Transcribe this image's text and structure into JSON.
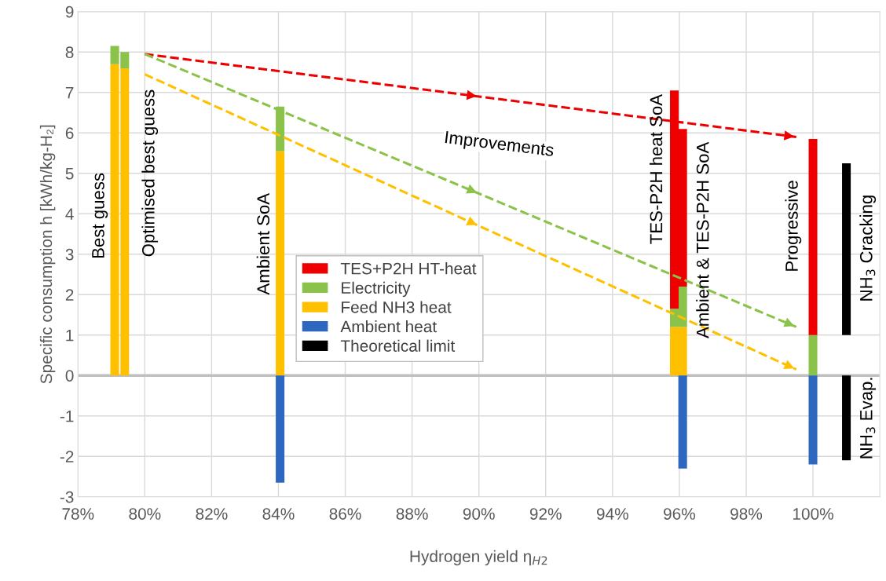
{
  "chart_data": [
    {
      "type": "bar",
      "stacked": true,
      "xlabel": "Hydrogen yield η$_{H2}$",
      "ylabel": "Specific consumption h [kWh/kg-H₂]",
      "x": [
        79.1,
        79.4,
        84.05,
        95.85,
        96.1,
        100
      ],
      "series": [
        {
          "name": "Feed NH3 heat",
          "color": "#ffc000",
          "values": [
            7.7,
            7.6,
            5.55,
            1.2,
            1.2,
            null
          ]
        },
        {
          "name": "Electricity",
          "color": "#8bc24a",
          "values": [
            0.45,
            0.4,
            1.1,
            0.45,
            1.0,
            1.0
          ]
        },
        {
          "name": "TES+P2H HT-heat",
          "color": "#ee0000",
          "values": [
            null,
            null,
            null,
            5.4,
            3.9,
            4.85
          ]
        },
        {
          "name": "Ambient heat",
          "color": "#2e67c0",
          "values": [
            null,
            null,
            -2.65,
            null,
            -2.3,
            -2.2
          ]
        },
        {
          "type": "line",
          "color": "#ee0000",
          "line_style": "dashed",
          "x": [
            80,
            90,
            99.5
          ],
          "values": [
            7.95,
            6.9,
            5.9
          ]
        },
        {
          "type": "line",
          "color": "#8bc24a",
          "line_style": "dashed",
          "x": [
            80,
            90,
            99.5
          ],
          "values": [
            7.95,
            4.5,
            1.2
          ]
        },
        {
          "type": "line",
          "color": "#ffc000",
          "line_style": "dashed",
          "x": [
            80,
            90,
            99.5
          ],
          "values": [
            7.45,
            3.7,
            0.15
          ]
        }
      ],
      "annotations": [
        "Best guess",
        "Optimised best guess",
        "Ambient SoA",
        "TES-P2H heat SoA",
        "Ambient & TES-P2H SoA",
        "Progressive",
        "Improvements"
      ],
      "xlim": [
        78,
        102
      ],
      "xticks": [
        {
          "value": 78,
          "label": "78%"
        },
        {
          "value": 80,
          "label": "80%"
        },
        {
          "value": 82,
          "label": "82%"
        },
        {
          "value": 84,
          "label": "84%"
        },
        {
          "value": 86,
          "label": "86%"
        },
        {
          "value": 88,
          "label": "88%"
        },
        {
          "value": 90,
          "label": "90%"
        },
        {
          "value": 92,
          "label": "92%"
        },
        {
          "value": 94,
          "label": "94%"
        },
        {
          "value": 96,
          "label": "96%"
        },
        {
          "value": 98,
          "label": "98%"
        },
        {
          "value": 100,
          "label": "100%"
        }
      ],
      "ylim": [
        -3,
        9
      ],
      "yticks": [
        -3,
        -2,
        -1,
        0,
        1,
        2,
        3,
        4,
        5,
        6,
        7,
        8,
        9
      ],
      "ref_lines": [
        {
          "axis": "y",
          "value": 0,
          "color": "#bfbfbf"
        }
      ],
      "grid": true,
      "legend": "bottom"
    },
    {
      "type": "bar",
      "x": [
        101,
        101
      ],
      "series": [
        {
          "name": "Theoretical limit",
          "color": "#000000",
          "base": [
            1,
            0
          ],
          "values": [
            4.25,
            -2.1
          ]
        }
      ],
      "annotations": [
        "NH$_{3}$ Cracking",
        "NH$_{3}$ Evap."
      ],
      "xlim": [
        78,
        102
      ],
      "ylim": [
        -3,
        9
      ],
      "yticks": [
        -3,
        -2,
        -1,
        0,
        1,
        2,
        3,
        4,
        5,
        6,
        7,
        8,
        9
      ],
      "tick_labels": false
    }
  ]
}
